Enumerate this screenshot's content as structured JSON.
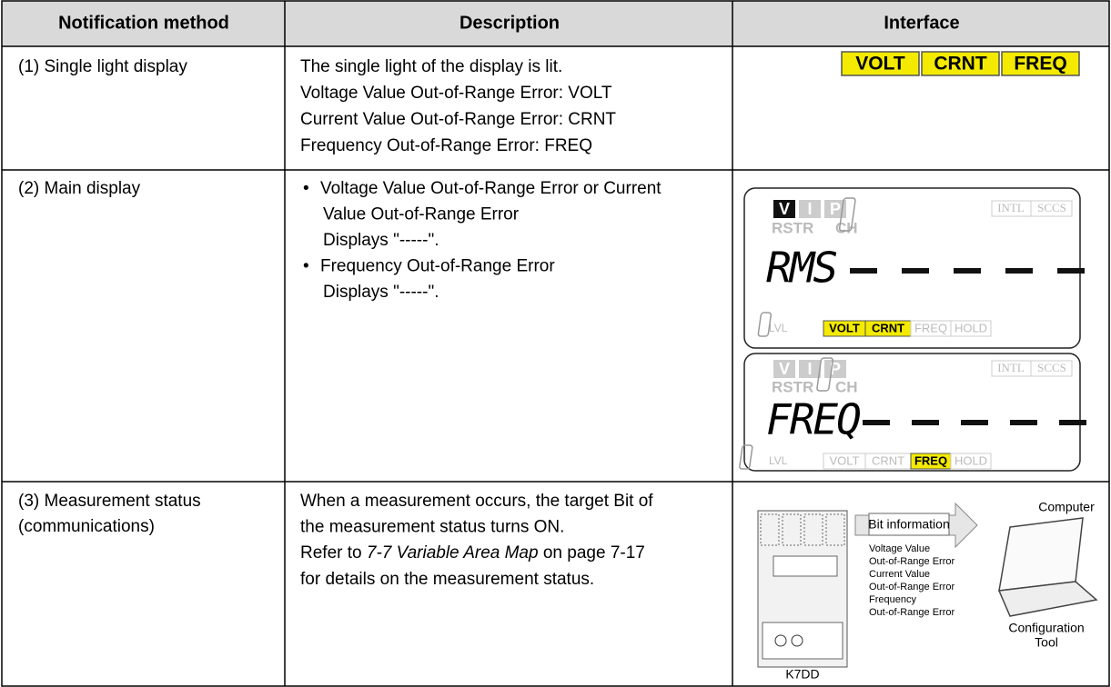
{
  "table": {
    "header": [
      "Notification method",
      "Description",
      "Interface"
    ],
    "rows": [
      {
        "method": [
          "(1) Single light display"
        ],
        "description": [
          "The single light of the display is lit.",
          "Voltage Value Out-of-Range Error: VOLT",
          "Current Value Out-of-Range Error: CRNT",
          "Frequency Out-of-Range Error: FREQ"
        ],
        "interface": [
          "VOLT",
          "CRNT",
          "FREQ"
        ]
      },
      {
        "method": [
          "(2) Main display"
        ],
        "bullets": [
          [
            "Voltage Value Out-of-Range Error or Current",
            "Value Out-of-Range Error",
            "Displays \"-----\"."
          ],
          [
            "Frequency Out-of-Range Error",
            "Displays \"-----\"."
          ]
        ],
        "panels": [
          {
            "channels": [
              "V",
              "I",
              "P"
            ],
            "rstr": "RSTR",
            "ch": "CH",
            "flags": [
              "INTL",
              "SCCS"
            ],
            "main": "RMS",
            "lvl": "LVL",
            "status": [
              "VOLT",
              "CRNT",
              "FREQ",
              "HOLD"
            ]
          },
          {
            "channels": [
              "V",
              "I",
              "P"
            ],
            "rstr": "RSTR",
            "ch": "CH",
            "flags": [
              "INTL",
              "SCCS"
            ],
            "main": "FREQ",
            "lvl": "LVL",
            "status": [
              "VOLT",
              "CRNT",
              "FREQ",
              "HOLD"
            ]
          }
        ]
      },
      {
        "method": [
          "(3) Measurement status",
          "(communications)"
        ],
        "description": [
          "When a measurement occurs, the target Bit of",
          "the measurement status turns ON."
        ],
        "refer": {
          "before": "Refer to ",
          "link": "7-7 Variable Area Map",
          "after": " on page 7-17",
          "last": "for details on the measurement status."
        },
        "diagram": {
          "computer": "Computer",
          "arrow": "Bit information",
          "errors": [
            [
              "Voltage Value",
              "Out-of-Range Error"
            ],
            [
              "Current Value",
              "Out-of-Range Error"
            ],
            [
              "Frequency",
              "Out-of-Range Error"
            ]
          ],
          "tool": [
            "Configuration",
            "Tool"
          ],
          "device": "K7DD"
        }
      }
    ]
  }
}
